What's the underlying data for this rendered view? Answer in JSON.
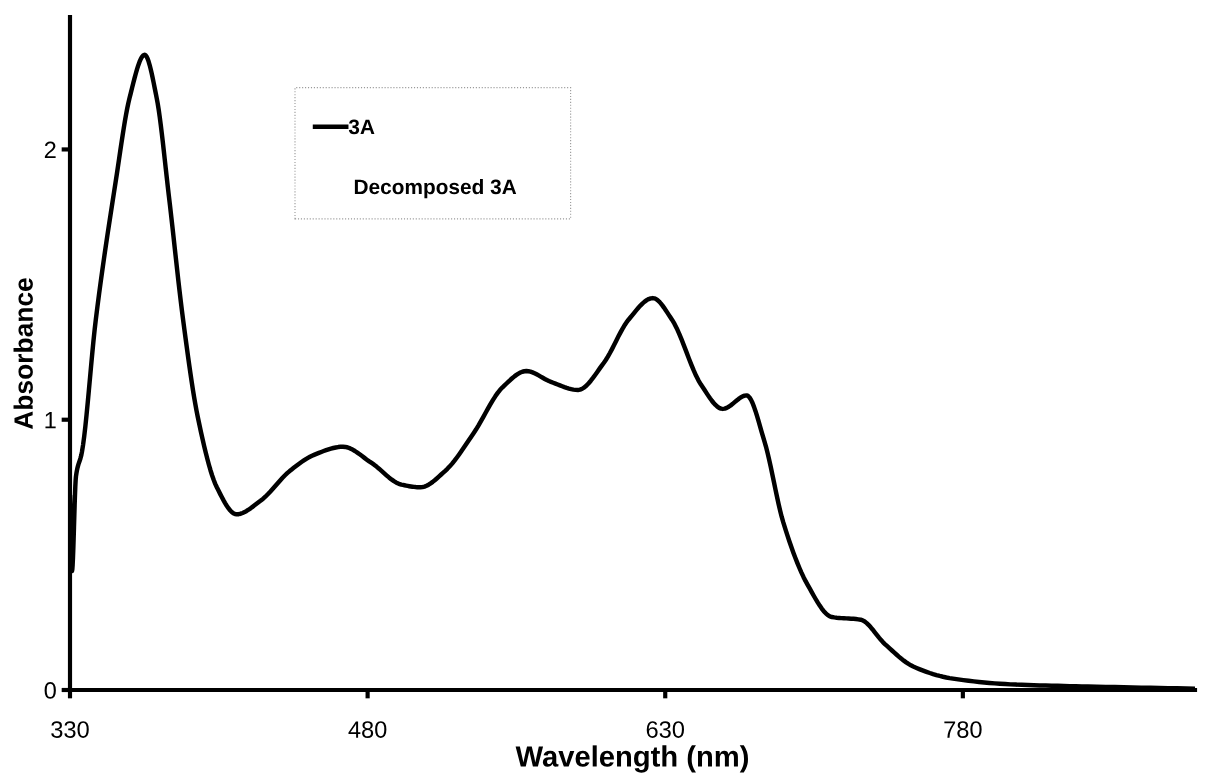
{
  "chart_data": {
    "type": "line",
    "xlabel": "Wavelength (nm)",
    "ylabel": "Absorbance",
    "xlim": [
      330,
      897
    ],
    "ylim": [
      0,
      2.49
    ],
    "xticks": [
      330,
      480,
      630,
      780
    ],
    "yticks": [
      0,
      1,
      2
    ],
    "grid": false,
    "annotations": [
      "Decomposed 3A"
    ],
    "legend": "top left",
    "marker": "none",
    "line_style": "solid",
    "x": [
      330,
      331,
      333,
      336,
      343,
      353,
      360,
      367.6,
      373.7,
      379.8,
      387,
      394.4,
      404,
      414,
      426,
      440.7,
      453,
      467.6,
      482,
      497,
      506.6,
      519,
      533.4,
      548,
      560,
      572.4,
      586,
      599,
      611.5,
      623.7,
      633.4,
      648,
      659,
      671,
      680,
      689.5,
      701.7,
      714,
      728.5,
      740.7,
      755,
      775,
      806.6,
      843,
      897
    ],
    "series": [
      {
        "name": "3A",
        "color": "#000000",
        "values": [
          0.72,
          0.44,
          0.79,
          0.88,
          1.37,
          1.88,
          2.19,
          2.35,
          2.19,
          1.83,
          1.37,
          1.01,
          0.75,
          0.65,
          0.7,
          0.81,
          0.87,
          0.9,
          0.84,
          0.76,
          0.75,
          0.81,
          0.95,
          1.12,
          1.18,
          1.14,
          1.11,
          1.21,
          1.37,
          1.45,
          1.37,
          1.13,
          1.04,
          1.09,
          0.92,
          0.62,
          0.39,
          0.27,
          0.26,
          0.17,
          0.087,
          0.042,
          0.02,
          0.013,
          0.005
        ]
      }
    ]
  }
}
